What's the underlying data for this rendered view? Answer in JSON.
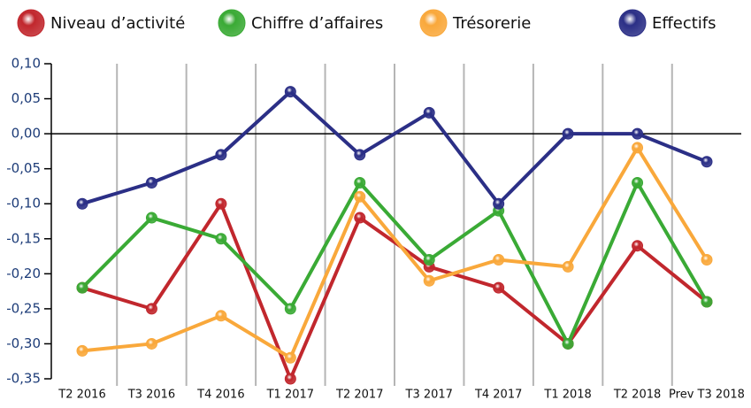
{
  "chart_data": {
    "type": "line",
    "categories": [
      "T2 2016",
      "T3 2016",
      "T4 2016",
      "T1 2017",
      "T2 2017",
      "T3 2017",
      "T4 2017",
      "T1 2018",
      "T2 2018",
      "Prev T3 2018"
    ],
    "series": [
      {
        "name": "Niveau d’activité",
        "color": "#c1272d",
        "values": [
          -0.22,
          -0.25,
          -0.1,
          -0.35,
          -0.12,
          -0.19,
          -0.22,
          -0.3,
          -0.16,
          -0.24
        ]
      },
      {
        "name": "Chiffre d’affaires",
        "color": "#3aaa35",
        "values": [
          -0.22,
          -0.12,
          -0.15,
          -0.25,
          -0.07,
          -0.18,
          -0.11,
          -0.3,
          -0.07,
          -0.24
        ]
      },
      {
        "name": "Trésorerie",
        "color": "#f9a83b",
        "values": [
          -0.31,
          -0.3,
          -0.26,
          -0.32,
          -0.09,
          -0.21,
          -0.18,
          -0.19,
          -0.02,
          -0.18
        ]
      },
      {
        "name": "Effectifs",
        "color": "#2b2f86",
        "values": [
          -0.1,
          -0.07,
          -0.03,
          0.06,
          -0.03,
          0.03,
          -0.1,
          0.0,
          0.0,
          -0.04
        ]
      }
    ],
    "ylim": [
      -0.35,
      0.1
    ],
    "yticks": [
      {
        "value": 0.1,
        "label": "0,10"
      },
      {
        "value": 0.05,
        "label": "0,05"
      },
      {
        "value": 0,
        "label": "0,00"
      },
      {
        "value": -0.05,
        "label": "-0,05"
      },
      {
        "value": -0.1,
        "label": "-0,10"
      },
      {
        "value": -0.15,
        "label": "-0,15"
      },
      {
        "value": -0.2,
        "label": "-0,20"
      },
      {
        "value": -0.25,
        "label": "-0,25"
      },
      {
        "value": -0.3,
        "label": "-0,30"
      },
      {
        "value": -0.35,
        "label": "-0,35"
      }
    ],
    "grid": true
  }
}
